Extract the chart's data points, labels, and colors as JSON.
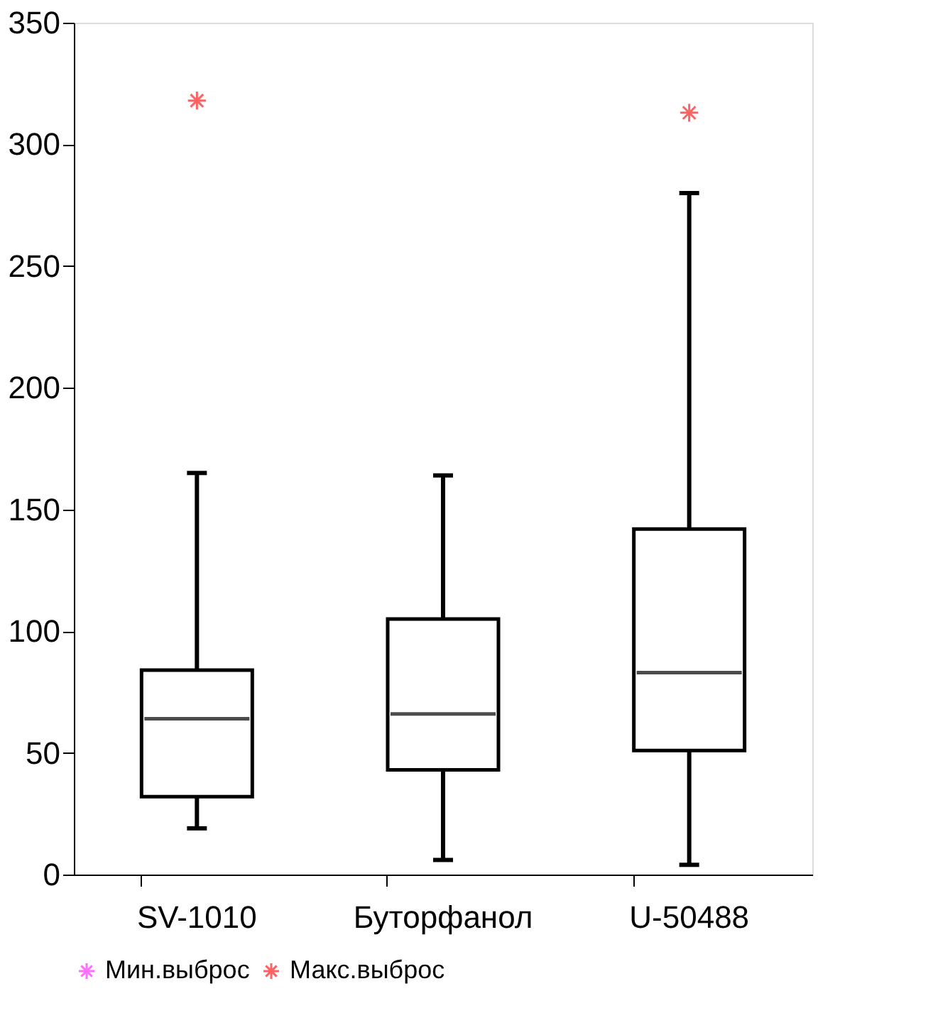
{
  "chart_data": {
    "type": "box",
    "categories": [
      "SV-1010",
      "Буторфанол",
      "U-50488"
    ],
    "boxes": [
      {
        "low": 19,
        "q1": 32,
        "median": 64,
        "q3": 84,
        "high": 165
      },
      {
        "low": 6,
        "q1": 43,
        "median": 66,
        "q3": 105,
        "high": 164
      },
      {
        "low": 4,
        "q1": 51,
        "median": 83,
        "q3": 142,
        "high": 280
      }
    ],
    "series": [
      {
        "name": "Мин.выброс",
        "color": "#ff33ff",
        "type": "scatter",
        "values": [
          null,
          null,
          null
        ]
      },
      {
        "name": "Макс.выброс",
        "color": "#ff2020",
        "type": "scatter",
        "values": [
          318,
          null,
          313
        ]
      }
    ],
    "ylim": [
      0,
      350
    ],
    "yticks": [
      0,
      50,
      100,
      150,
      200,
      250,
      300,
      350
    ],
    "grid": false,
    "legend": "bottom",
    "marker": "cross"
  }
}
